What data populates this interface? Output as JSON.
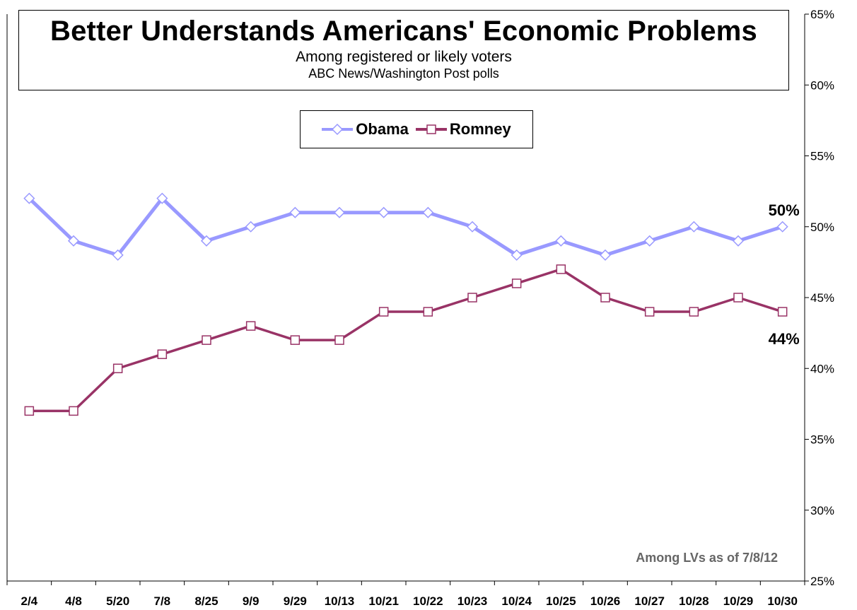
{
  "header": {
    "title": "Better Understands Americans' Economic Problems",
    "subtitle": "Among registered or likely voters",
    "source": "ABC News/Washington Post polls"
  },
  "note": "Among LVs as of 7/8/12",
  "colors": {
    "obama": "#9999ff",
    "romney": "#993366"
  },
  "chart_data": {
    "type": "line",
    "title": "Better Understands Americans' Economic Problems",
    "subtitle": "Among registered or likely voters",
    "categories": [
      "2/4",
      "4/8",
      "5/20",
      "7/8",
      "8/25",
      "9/9",
      "9/29",
      "10/13",
      "10/21",
      "10/22",
      "10/23",
      "10/24",
      "10/25",
      "10/26",
      "10/27",
      "10/28",
      "10/29",
      "10/30"
    ],
    "series": [
      {
        "name": "Obama",
        "values": [
          52,
          49,
          48,
          52,
          49,
          50,
          51,
          51,
          51,
          51,
          50,
          48,
          49,
          48,
          49,
          50,
          49,
          50
        ],
        "marker": "diamond",
        "end_label": "50%"
      },
      {
        "name": "Romney",
        "values": [
          37,
          37,
          40,
          41,
          42,
          43,
          42,
          42,
          44,
          44,
          45,
          46,
          47,
          45,
          44,
          44,
          45,
          44
        ],
        "marker": "square",
        "end_label": "44%"
      }
    ],
    "ylim": [
      25,
      65
    ],
    "yticks": [
      25,
      30,
      35,
      40,
      45,
      50,
      55,
      60,
      65
    ],
    "ytick_labels": [
      "25%",
      "30%",
      "35%",
      "40%",
      "45%",
      "50%",
      "55%",
      "60%",
      "65%"
    ],
    "y_axis_side": "right",
    "grid": false,
    "legend_position": "top-center"
  }
}
